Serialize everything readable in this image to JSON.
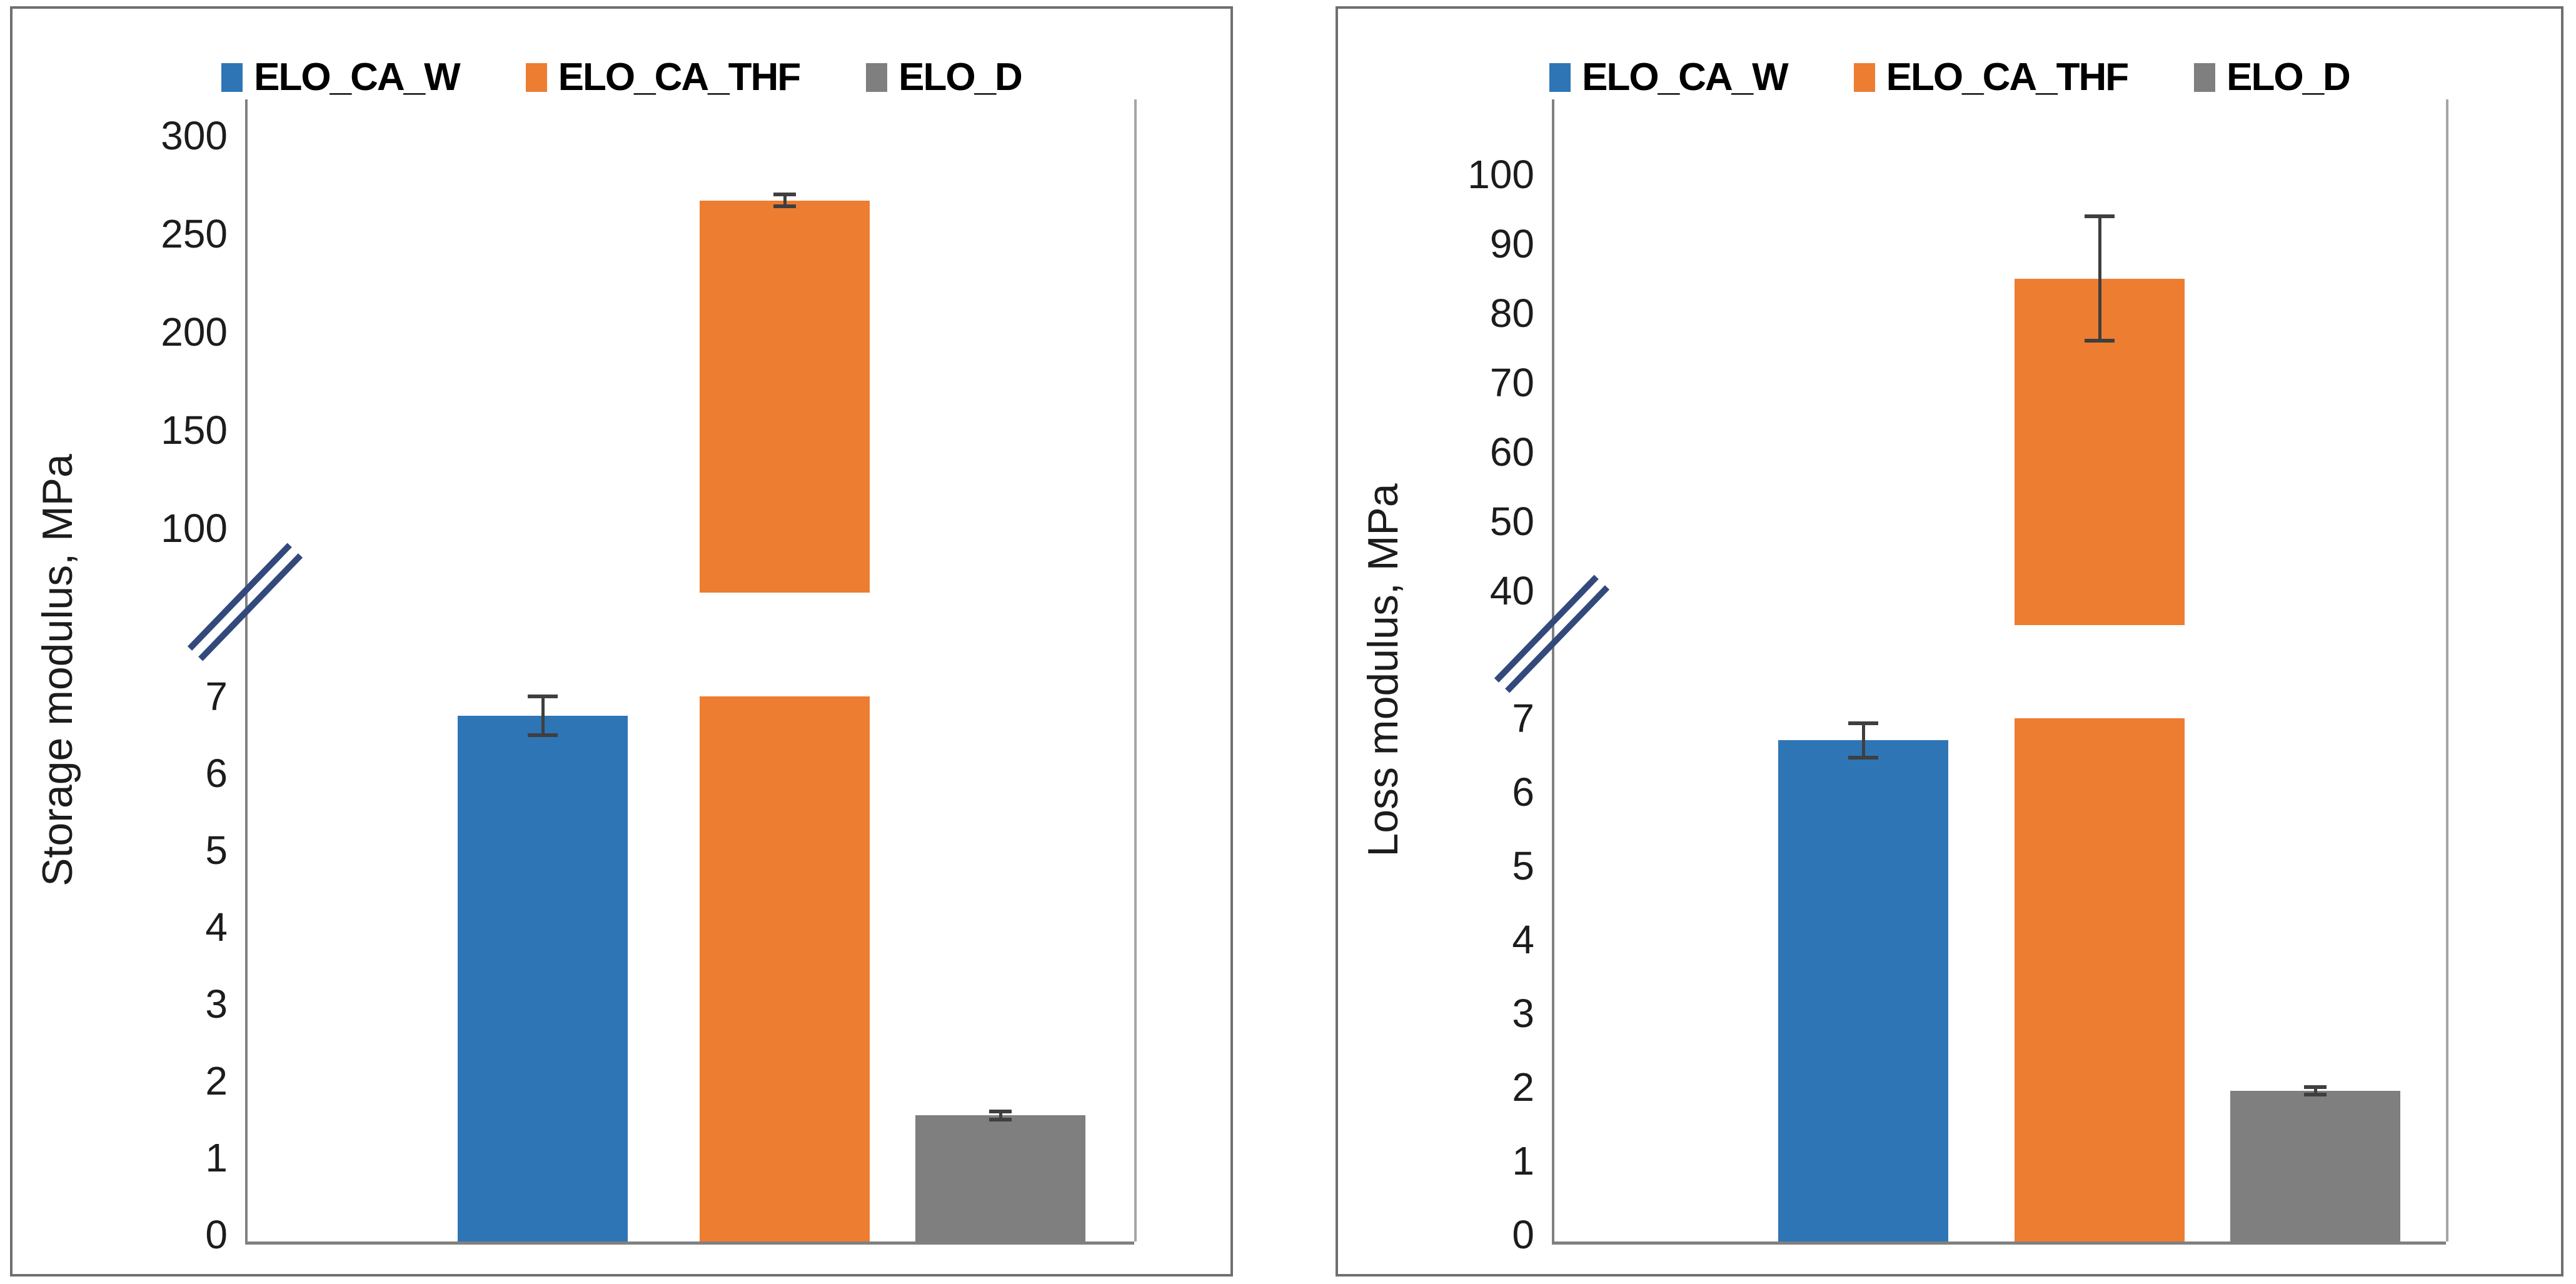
{
  "figure": {
    "description_visible_text_only": true,
    "panel_count": 2
  },
  "chart_data": [
    {
      "type": "bar",
      "title": "",
      "ylabel": "Storage modulus, MPa",
      "xlabel": "",
      "categories": [
        "ELO_CA_W",
        "ELO_CA_THF",
        "ELO_D"
      ],
      "legend": [
        {
          "label": "ELO_CA_W",
          "color": "#2E75B6"
        },
        {
          "label": "ELO_CA_THF",
          "color": "#ED7D31"
        },
        {
          "label": "ELO_D",
          "color": "#7F7F7F"
        }
      ],
      "legend_position": "top",
      "axis": {
        "style": "broken-y",
        "grid": false,
        "lower_range": [
          0,
          7
        ],
        "upper_range": [
          100,
          300
        ],
        "lower_ticks": [
          0,
          1,
          2,
          3,
          4,
          5,
          6,
          7
        ],
        "upper_ticks": [
          100,
          150,
          200,
          250,
          300
        ]
      },
      "bars": [
        {
          "label": "ELO_CA_W",
          "value": 6.75,
          "error": 0.25,
          "color": "#2E75B6"
        },
        {
          "label": "ELO_CA_THF",
          "value": 267,
          "error": 3,
          "color": "#ED7D31"
        },
        {
          "label": "ELO_D",
          "value": 1.55,
          "error": 0.05,
          "color": "#7F7F7F"
        }
      ],
      "colors": {
        "axis_line": "#808080",
        "error_bar": "#3F3F3F",
        "break_symbol": "#33497C",
        "panel_border": "#6F6F6F"
      }
    },
    {
      "type": "bar",
      "title": "",
      "ylabel": "Loss modulus, MPa",
      "xlabel": "",
      "categories": [
        "ELO_CA_W",
        "ELO_CA_THF",
        "ELO_D"
      ],
      "legend": [
        {
          "label": "ELO_CA_W",
          "color": "#2E75B6"
        },
        {
          "label": "ELO_CA_THF",
          "color": "#ED7D31"
        },
        {
          "label": "ELO_D",
          "color": "#7F7F7F"
        }
      ],
      "legend_position": "top",
      "axis": {
        "style": "broken-y",
        "grid": false,
        "lower_range": [
          0,
          7
        ],
        "upper_range": [
          40,
          100
        ],
        "lower_ticks": [
          0,
          1,
          2,
          3,
          4,
          5,
          6,
          7
        ],
        "upper_ticks": [
          40,
          50,
          60,
          70,
          80,
          90,
          100
        ]
      },
      "bars": [
        {
          "label": "ELO_CA_W",
          "value": 6.7,
          "error": 0.23,
          "color": "#2E75B6"
        },
        {
          "label": "ELO_CA_THF",
          "value": 85,
          "error": 9,
          "color": "#ED7D31"
        },
        {
          "label": "ELO_D",
          "value": 1.95,
          "error": 0.05,
          "color": "#7F7F7F"
        }
      ],
      "colors": {
        "axis_line": "#808080",
        "error_bar": "#3F3F3F",
        "break_symbol": "#33497C",
        "panel_border": "#6F6F6F"
      }
    }
  ]
}
